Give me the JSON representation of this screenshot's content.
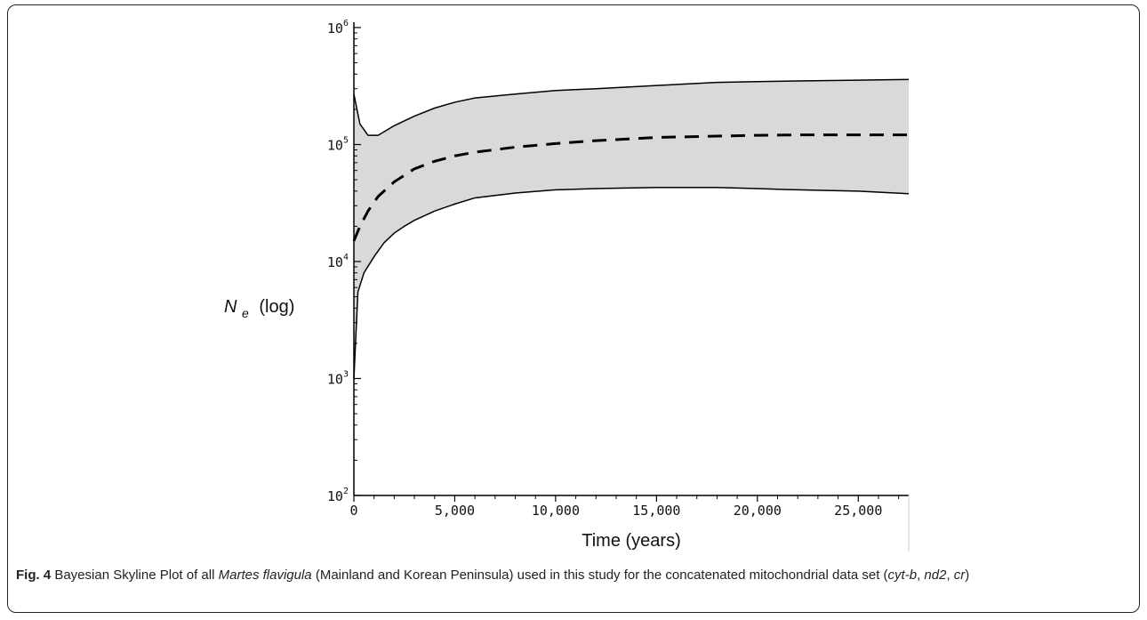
{
  "chart_data": {
    "type": "area",
    "xlabel": "Time (years)",
    "ylabel": {
      "main": "N",
      "sub": "e",
      "suffix": "(log)"
    },
    "yscale": "log",
    "xlim": [
      0,
      27500
    ],
    "ylim": [
      100,
      1000000
    ],
    "xticks": [
      0,
      5000,
      10000,
      15000,
      20000,
      25000
    ],
    "xtick_labels": [
      "0",
      "5,000",
      "10,000",
      "15,000",
      "20,000",
      "25,000"
    ],
    "yticks": [
      {
        "value": 100,
        "base": "10",
        "exp": "2"
      },
      {
        "value": 1000,
        "base": "10",
        "exp": "3"
      },
      {
        "value": 10000,
        "base": "10",
        "exp": "4"
      },
      {
        "value": 100000,
        "base": "10",
        "exp": "5"
      },
      {
        "value": 1000000,
        "base": "10",
        "exp": "6"
      }
    ],
    "grid": false,
    "band_color": "#d9d9d9",
    "line_color": "#000000",
    "series": [
      {
        "role": "upper_hpd",
        "style": "solid",
        "x": [
          0,
          300,
          700,
          1200,
          2000,
          3000,
          4000,
          5000,
          6000,
          8000,
          10000,
          12000,
          15000,
          18000,
          20000,
          22000,
          25000,
          27500
        ],
        "y": [
          270000,
          150000,
          120000,
          120000,
          145000,
          175000,
          205000,
          230000,
          250000,
          270000,
          290000,
          300000,
          320000,
          340000,
          345000,
          350000,
          355000,
          360000
        ]
      },
      {
        "role": "median",
        "style": "dashed",
        "x": [
          0,
          300,
          700,
          1200,
          2000,
          3000,
          4000,
          5000,
          6000,
          8000,
          10000,
          12000,
          15000,
          18000,
          20000,
          22000,
          25000,
          27500
        ],
        "y": [
          15000,
          20000,
          27000,
          36000,
          48000,
          62000,
          72000,
          80000,
          86000,
          95000,
          102000,
          108000,
          115000,
          118000,
          120000,
          121000,
          121000,
          121000
        ]
      },
      {
        "role": "lower_hpd",
        "style": "solid",
        "x": [
          0,
          200,
          500,
          1000,
          1500,
          2000,
          2500,
          3000,
          4000,
          5000,
          6000,
          8000,
          10000,
          12000,
          15000,
          18000,
          20000,
          22000,
          25000,
          27500
        ],
        "y": [
          1000,
          5500,
          8000,
          11000,
          14500,
          17500,
          20000,
          22500,
          27000,
          31000,
          35000,
          38500,
          41000,
          42000,
          43000,
          43000,
          42000,
          41000,
          40000,
          38000
        ]
      }
    ]
  },
  "caption": {
    "label": "Fig. 4",
    "parts": [
      {
        "text": " Bayesian Skyline Plot of all ",
        "italic": false
      },
      {
        "text": "Martes flavigula",
        "italic": true
      },
      {
        "text": " (Mainland and Korean Peninsula) used in this study for the concatenated mitochondrial data set (",
        "italic": false
      },
      {
        "text": "cyt-b",
        "italic": true
      },
      {
        "text": ", ",
        "italic": false
      },
      {
        "text": "nd2",
        "italic": true
      },
      {
        "text": ", ",
        "italic": false
      },
      {
        "text": "cr",
        "italic": true
      },
      {
        "text": ")",
        "italic": false
      }
    ]
  }
}
